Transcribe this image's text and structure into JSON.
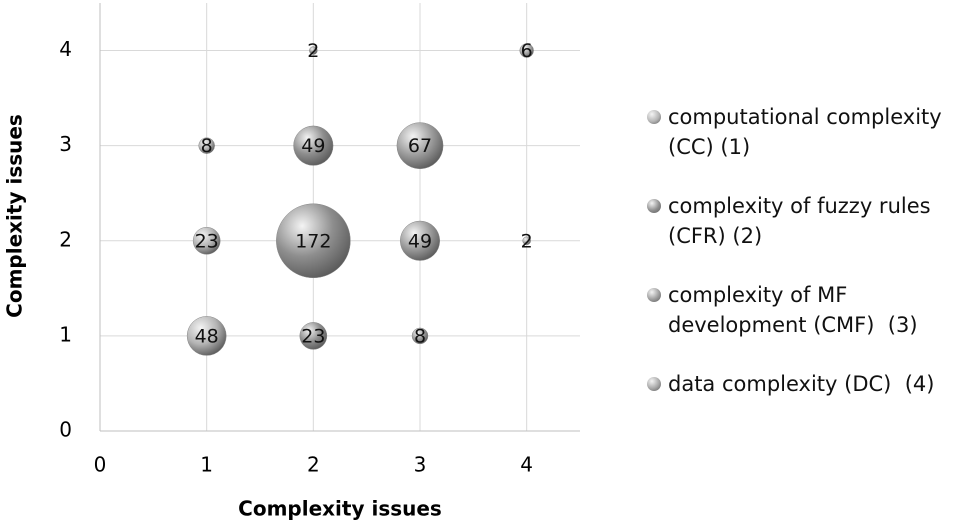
{
  "chart_data": {
    "type": "bubble",
    "x_label": "Complexity issues",
    "y_label": "Complexity issues",
    "xlim": [
      0,
      4.5
    ],
    "ylim": [
      0,
      4.5
    ],
    "xticks": [
      0,
      1,
      2,
      3,
      4
    ],
    "yticks": [
      0,
      1,
      2,
      3,
      4
    ],
    "grid": true,
    "legend": "right",
    "series": [
      {
        "name": "computational complexity (CC) (1)",
        "color": "#b4b4b4",
        "x": [
          1,
          1,
          1
        ],
        "y": [
          1,
          2,
          3
        ],
        "sizes": [
          48,
          23,
          8
        ]
      },
      {
        "name": "complexity of fuzzy rules (CFR) (2)",
        "color": "#8e8e8e",
        "x": [
          2,
          2,
          2,
          2
        ],
        "y": [
          1,
          2,
          3,
          4
        ],
        "sizes": [
          23,
          172,
          49,
          2
        ]
      },
      {
        "name": "complexity of MF development (CMF)  (3)",
        "color": "#9c9c9c",
        "x": [
          3,
          3,
          3
        ],
        "y": [
          1,
          2,
          3
        ],
        "sizes": [
          8,
          49,
          67
        ]
      },
      {
        "name": "data complexity (DC)  (4)",
        "color": "#a6a6a6",
        "x": [
          4,
          4
        ],
        "y": [
          2,
          4
        ],
        "sizes": [
          2,
          6
        ]
      }
    ]
  }
}
